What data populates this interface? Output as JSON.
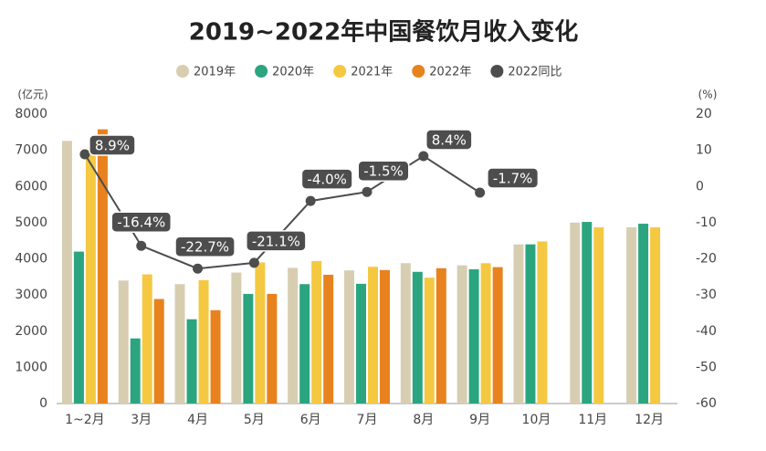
{
  "chart_data": {
    "type": "bar",
    "title": "2019~2022年中国餐饮月收入变化",
    "y_label": "(亿元)",
    "y2_label": "(%)",
    "categories": [
      "1~2月",
      "3月",
      "4月",
      "5月",
      "6月",
      "7月",
      "8月",
      "9月",
      "10月",
      "11月",
      "12月"
    ],
    "series": [
      {
        "name": "2019年",
        "color": "#d7ceb2",
        "values": [
          7260,
          3400,
          3300,
          3620,
          3750,
          3680,
          3880,
          3820,
          4400,
          5000,
          4870
        ]
      },
      {
        "name": "2020年",
        "color": "#2ba57f",
        "values": [
          4200,
          1800,
          2330,
          3030,
          3300,
          3310,
          3640,
          3710,
          4400,
          5020,
          4970
        ]
      },
      {
        "name": "2021年",
        "color": "#f5c842",
        "values": [
          7000,
          3570,
          3410,
          3900,
          3940,
          3780,
          3480,
          3880,
          4480,
          4870,
          4870
        ]
      },
      {
        "name": "2022年",
        "color": "#e8821e",
        "values": [
          7580,
          2890,
          2580,
          3030,
          3560,
          3690,
          3740,
          3770,
          null,
          null,
          null
        ]
      },
      {
        "name": "2022同比",
        "color": "#4d4d4d",
        "type": "line",
        "axis": "y2",
        "values": [
          8.9,
          -16.4,
          -22.7,
          -21.1,
          -4.0,
          -1.5,
          8.4,
          -1.7,
          null,
          null,
          null
        ],
        "value_labels": [
          "8.9%",
          "-16.4%",
          "-22.7%",
          "-21.1%",
          "-4.0%",
          "-1.5%",
          "8.4%",
          "-1.7%",
          null,
          null,
          null
        ]
      }
    ],
    "ylim": [
      0,
      8000
    ],
    "yticks": [
      0,
      1000,
      2000,
      3000,
      4000,
      5000,
      6000,
      7000,
      8000
    ],
    "y2lim": [
      -60,
      20
    ],
    "y2ticks": [
      -60,
      -50,
      -40,
      -30,
      -20,
      -10,
      0,
      10,
      20
    ],
    "grid": false,
    "legend": "top"
  }
}
